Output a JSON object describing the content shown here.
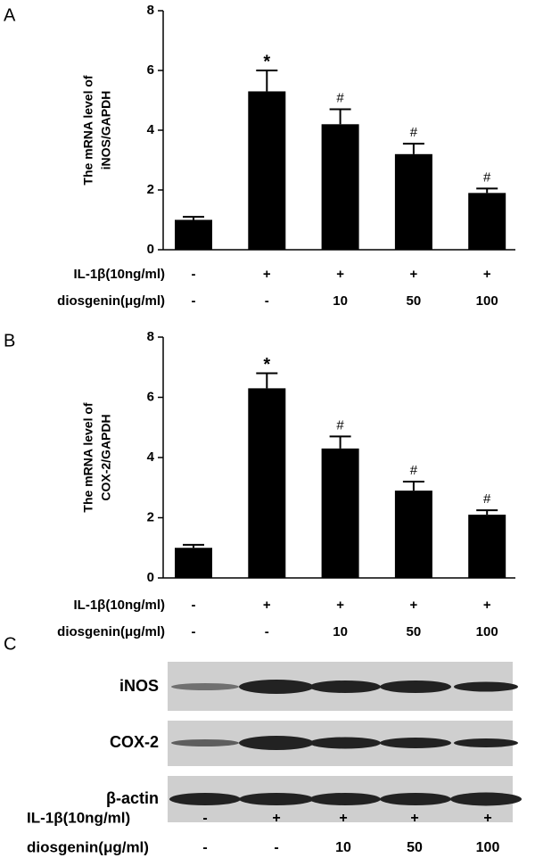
{
  "chart_data": [
    {
      "type": "bar",
      "panel": "A",
      "y_label": [
        "The mRNA level of",
        "iNOS/GAPDH"
      ],
      "series": [
        {
          "color": "#000000",
          "values": [
            1.0,
            5.3,
            4.2,
            3.2,
            1.9
          ],
          "errors": [
            0.1,
            0.7,
            0.5,
            0.35,
            0.15
          ]
        }
      ],
      "annotations": [
        null,
        "*",
        "#",
        "#",
        "#"
      ],
      "ylim": [
        0,
        8
      ],
      "yticks": [
        0,
        2,
        4,
        6,
        8
      ],
      "conditions": [
        {
          "name": "IL-1β(10ng/ml)",
          "values": [
            "-",
            "+",
            "+",
            "+",
            "+"
          ]
        },
        {
          "name": "diosgenin(μg/ml)",
          "values": [
            "-",
            "-",
            "10",
            "50",
            "100"
          ]
        }
      ]
    },
    {
      "type": "bar",
      "panel": "B",
      "y_label": [
        "The mRNA level of",
        "COX-2/GAPDH"
      ],
      "series": [
        {
          "color": "#000000",
          "values": [
            1.0,
            6.3,
            4.3,
            2.9,
            2.1
          ],
          "errors": [
            0.1,
            0.5,
            0.4,
            0.3,
            0.15
          ]
        }
      ],
      "annotations": [
        null,
        "*",
        "#",
        "#",
        "#"
      ],
      "ylim": [
        0,
        8
      ],
      "yticks": [
        0,
        2,
        4,
        6,
        8
      ],
      "conditions": [
        {
          "name": "IL-1β(10ng/ml)",
          "values": [
            "-",
            "+",
            "+",
            "+",
            "+"
          ]
        },
        {
          "name": "diosgenin(μg/ml)",
          "values": [
            "-",
            "-",
            "10",
            "50",
            "100"
          ]
        }
      ]
    }
  ],
  "blot": {
    "panel": "C",
    "rows": [
      "iNOS",
      "COX-2",
      "β-actin"
    ],
    "conditions": [
      {
        "name": "IL-1β(10ng/ml)",
        "values": [
          "-",
          "+",
          "+",
          "+",
          "+"
        ]
      },
      {
        "name": "diosgenin(μg/ml)",
        "values": [
          "-",
          "-",
          "10",
          "50",
          "100"
        ]
      }
    ]
  }
}
